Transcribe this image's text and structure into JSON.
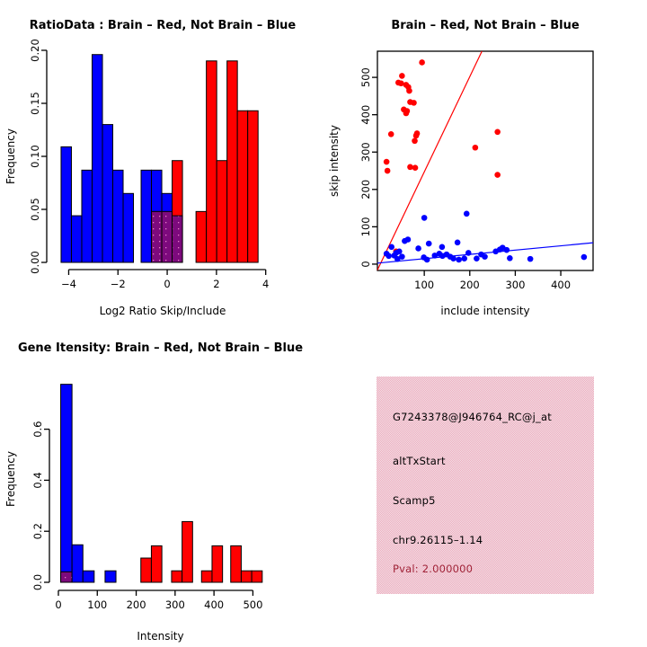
{
  "colors": {
    "red": "#FF0000",
    "blue": "#0000FF",
    "purple": "#7D0A7D",
    "purple_dot": "#E87BC8",
    "black": "#000000",
    "pink_a": "#F3A9BD",
    "pink_b": "#EDE3E7",
    "pval": "#A02438"
  },
  "chart_data": [
    {
      "id": "ratio-hist",
      "type": "bar",
      "title": "RatioData : Brain – Red, Not Brain – Blue",
      "xlabel": "Log2 Ratio Skip/Include",
      "ylabel": "Frequency",
      "xlim": [
        -4.71,
        4.34
      ],
      "ylim": [
        0,
        0.2
      ],
      "xticks": [
        {
          "v": -4,
          "l": "−4"
        },
        {
          "v": -2,
          "l": "−2"
        },
        {
          "v": 0,
          "l": "0"
        },
        {
          "v": 2,
          "l": "2"
        },
        {
          "v": 4,
          "l": "4"
        }
      ],
      "yticks": [
        {
          "v": 0,
          "l": "0.00"
        },
        {
          "v": 0.05,
          "l": "0.05"
        },
        {
          "v": 0.1,
          "l": "0.10"
        },
        {
          "v": 0.15,
          "l": "0.15"
        },
        {
          "v": 0.2,
          "l": "0.20"
        }
      ],
      "bars": [
        {
          "x0": -4.31,
          "x1": -3.89,
          "h": 0.109,
          "color": "blue"
        },
        {
          "x0": -3.89,
          "x1": -3.47,
          "h": 0.044,
          "color": "blue"
        },
        {
          "x0": -3.47,
          "x1": -3.05,
          "h": 0.087,
          "color": "blue"
        },
        {
          "x0": -3.05,
          "x1": -2.63,
          "h": 0.196,
          "color": "blue"
        },
        {
          "x0": -2.63,
          "x1": -2.21,
          "h": 0.13,
          "color": "blue"
        },
        {
          "x0": -2.21,
          "x1": -1.79,
          "h": 0.087,
          "color": "blue"
        },
        {
          "x0": -1.79,
          "x1": -1.37,
          "h": 0.065,
          "color": "blue"
        },
        {
          "x0": -1.06,
          "x1": -0.64,
          "h": 0.087,
          "color": "blue"
        },
        {
          "x0": -0.64,
          "x1": -0.22,
          "h": 0.087,
          "color": "blue",
          "overlap": 0.048
        },
        {
          "x0": -0.22,
          "x1": 0.2,
          "h": 0.065,
          "color": "blue",
          "overlap": 0.048
        },
        {
          "x0": 0.2,
          "x1": 0.62,
          "h": 0.096,
          "color": "red",
          "overlap": 0.044
        },
        {
          "x0": 1.17,
          "x1": 1.59,
          "h": 0.048,
          "color": "red"
        },
        {
          "x0": 1.59,
          "x1": 2.01,
          "h": 0.19,
          "color": "red"
        },
        {
          "x0": 2.01,
          "x1": 2.43,
          "h": 0.096,
          "color": "red"
        },
        {
          "x0": 2.43,
          "x1": 2.85,
          "h": 0.19,
          "color": "red"
        },
        {
          "x0": 2.85,
          "x1": 3.27,
          "h": 0.143,
          "color": "red"
        },
        {
          "x0": 3.27,
          "x1": 3.69,
          "h": 0.143,
          "color": "red"
        }
      ]
    },
    {
      "id": "intensity-scatter",
      "type": "scatter",
      "title": "Brain – Red, Not Brain – Blue",
      "xlabel": "include intensity",
      "ylabel": "skip intensity",
      "xlim": [
        -3,
        471
      ],
      "ylim": [
        -17,
        570
      ],
      "xticks": [
        {
          "v": 100,
          "l": "100"
        },
        {
          "v": 200,
          "l": "200"
        },
        {
          "v": 300,
          "l": "300"
        },
        {
          "v": 400,
          "l": "400"
        }
      ],
      "yticks": [
        {
          "v": 0,
          "l": "0"
        },
        {
          "v": 100,
          "l": "100"
        },
        {
          "v": 200,
          "l": "200"
        },
        {
          "v": 300,
          "l": "300"
        },
        {
          "v": 400,
          "l": "400"
        },
        {
          "v": 500,
          "l": "500"
        }
      ],
      "series": [
        {
          "name": "brain-red",
          "color": "red",
          "points": [
            [
              95,
              540
            ],
            [
              51,
              504
            ],
            [
              43,
              486
            ],
            [
              49,
              484
            ],
            [
              60,
              480
            ],
            [
              65,
              474
            ],
            [
              67,
              464
            ],
            [
              69,
              434
            ],
            [
              77,
              432
            ],
            [
              55,
              414
            ],
            [
              62,
              410
            ],
            [
              60,
              404
            ],
            [
              27,
              348
            ],
            [
              84,
              350
            ],
            [
              82,
              344
            ],
            [
              79,
              330
            ],
            [
              17,
              274
            ],
            [
              19,
              250
            ],
            [
              69,
              260
            ],
            [
              80,
              258
            ],
            [
              38,
              34
            ],
            [
              212,
              312
            ],
            [
              261,
              354
            ],
            [
              261,
              239
            ]
          ]
        },
        {
          "name": "not-brain-blue",
          "color": "blue",
          "points": [
            [
              100,
              124
            ],
            [
              193,
              135
            ],
            [
              57,
              62
            ],
            [
              64,
              66
            ],
            [
              28,
              46
            ],
            [
              87,
              42
            ],
            [
              110,
              55
            ],
            [
              139,
              46
            ],
            [
              173,
              58
            ],
            [
              38,
              30
            ],
            [
              45,
              34
            ],
            [
              22,
              22
            ],
            [
              17,
              28
            ],
            [
              34,
              23
            ],
            [
              51,
              20
            ],
            [
              41,
              14
            ],
            [
              99,
              18
            ],
            [
              106,
              12
            ],
            [
              123,
              23
            ],
            [
              133,
              28
            ],
            [
              140,
              22
            ],
            [
              149,
              26
            ],
            [
              157,
              20
            ],
            [
              164,
              15
            ],
            [
              176,
              12
            ],
            [
              188,
              15
            ],
            [
              197,
              30
            ],
            [
              215,
              15
            ],
            [
              225,
              26
            ],
            [
              233,
              20
            ],
            [
              257,
              34
            ],
            [
              266,
              39
            ],
            [
              272,
              44
            ],
            [
              281,
              38
            ],
            [
              288,
              16
            ],
            [
              333,
              14
            ],
            [
              451,
              19
            ]
          ]
        }
      ],
      "lines": [
        {
          "name": "red-fit-line",
          "color": "red",
          "x0": -3,
          "y0": -15.7,
          "x1": 226.7,
          "y1": 570
        },
        {
          "name": "blue-fit-line",
          "color": "blue",
          "x0": -3,
          "y0": 2.7,
          "x1": 471,
          "y1": 57.2
        }
      ]
    },
    {
      "id": "gene-hist",
      "type": "bar",
      "title": "Gene Itensity: Brain – Red, Not Brain – Blue",
      "xlabel": "Intensity",
      "ylabel": "Frequency",
      "xlim": [
        -11.5,
        536
      ],
      "ylim": [
        0,
        0.81
      ],
      "xticks": [
        {
          "v": 0,
          "l": "0"
        },
        {
          "v": 100,
          "l": "100"
        },
        {
          "v": 200,
          "l": "200"
        },
        {
          "v": 300,
          "l": "300"
        },
        {
          "v": 400,
          "l": "400"
        },
        {
          "v": 500,
          "l": "500"
        }
      ],
      "yticks": [
        {
          "v": 0,
          "l": "0.0"
        },
        {
          "v": 0.2,
          "l": "0.2"
        },
        {
          "v": 0.4,
          "l": "0.4"
        },
        {
          "v": 0.6,
          "l": "0.6"
        }
      ],
      "bars": [
        {
          "x0": 6,
          "x1": 35,
          "h": 0.776,
          "color": "blue",
          "overlap": 0.041
        },
        {
          "x0": 35,
          "x1": 63,
          "h": 0.147,
          "color": "blue"
        },
        {
          "x0": 63,
          "x1": 92,
          "h": 0.045,
          "color": "blue"
        },
        {
          "x0": 120,
          "x1": 148,
          "h": 0.045,
          "color": "blue"
        },
        {
          "x0": 212,
          "x1": 239,
          "h": 0.095,
          "color": "red"
        },
        {
          "x0": 239,
          "x1": 266,
          "h": 0.143,
          "color": "red"
        },
        {
          "x0": 291,
          "x1": 318,
          "h": 0.045,
          "color": "red"
        },
        {
          "x0": 318,
          "x1": 345,
          "h": 0.238,
          "color": "red"
        },
        {
          "x0": 368,
          "x1": 395,
          "h": 0.045,
          "color": "red"
        },
        {
          "x0": 395,
          "x1": 422,
          "h": 0.143,
          "color": "red"
        },
        {
          "x0": 443,
          "x1": 470,
          "h": 0.143,
          "color": "red"
        },
        {
          "x0": 470,
          "x1": 497,
          "h": 0.045,
          "color": "red"
        },
        {
          "x0": 497,
          "x1": 524,
          "h": 0.045,
          "color": "red"
        }
      ]
    }
  ],
  "info_box": {
    "probe_id": "G7243378@J946764_RC@j_at",
    "event_type": "altTxStart",
    "gene": "Scamp5",
    "locus": "chr9.26115–1.14",
    "pval": "Pval: 2.000000"
  }
}
